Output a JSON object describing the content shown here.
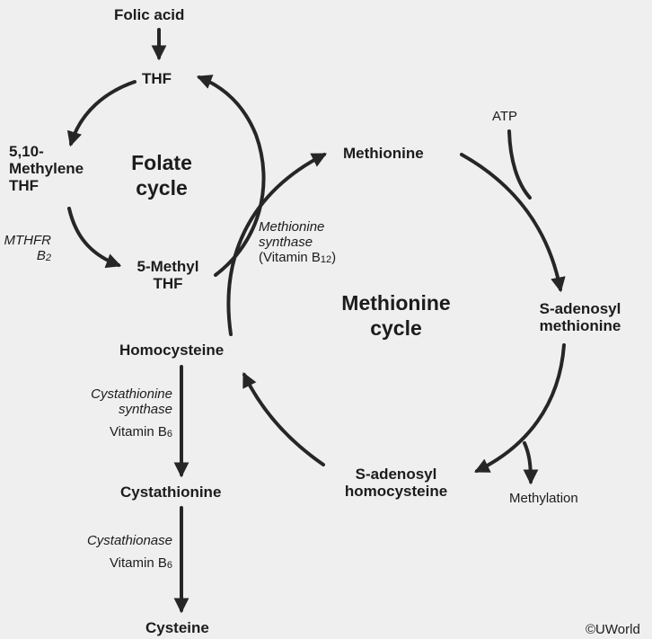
{
  "nodes": {
    "folic_acid": "Folic acid",
    "thf": "THF",
    "methylene_thf_line1": "5,10-",
    "methylene_thf_line2": "Methylene",
    "methylene_thf_line3": "THF",
    "methyl_thf_line1": "5-Methyl",
    "methyl_thf_line2": "THF",
    "methionine": "Methionine",
    "sam_line1": "S-adenosyl",
    "sam_line2": "methionine",
    "sah_line1": "S-adenosyl",
    "sah_line2": "homocysteine",
    "homocysteine": "Homocysteine",
    "cystathionine": "Cystathionine",
    "cysteine": "Cysteine"
  },
  "cycles": {
    "folate_line1": "Folate",
    "folate_line2": "cycle",
    "methionine_line1": "Methionine",
    "methionine_line2": "cycle"
  },
  "enzymes": {
    "mthfr": "MTHFR",
    "mthfr_cofactor_base": "B",
    "mthfr_cofactor_sub": "2",
    "methionine_synthase_line1": "Methionine",
    "methionine_synthase_line2": "synthase",
    "methionine_synthase_cofactor_prefix": "(Vitamin B",
    "methionine_synthase_cofactor_sub": "12",
    "methionine_synthase_cofactor_suffix": ")",
    "cystathionine_synthase_line1": "Cystathionine",
    "cystathionine_synthase_line2": "synthase",
    "cystathionine_synthase_cofactor_base": "Vitamin B",
    "cystathionine_synthase_cofactor_sub": "6",
    "cystathionase": "Cystathionase",
    "cystathionase_cofactor_base": "Vitamin B",
    "cystathionase_cofactor_sub": "6"
  },
  "side": {
    "atp": "ATP",
    "methylation": "Methylation"
  },
  "copyright": "©UWorld",
  "colors": {
    "background": "#efefef",
    "ink": "#1c1c1c",
    "arrow": "#262626"
  }
}
